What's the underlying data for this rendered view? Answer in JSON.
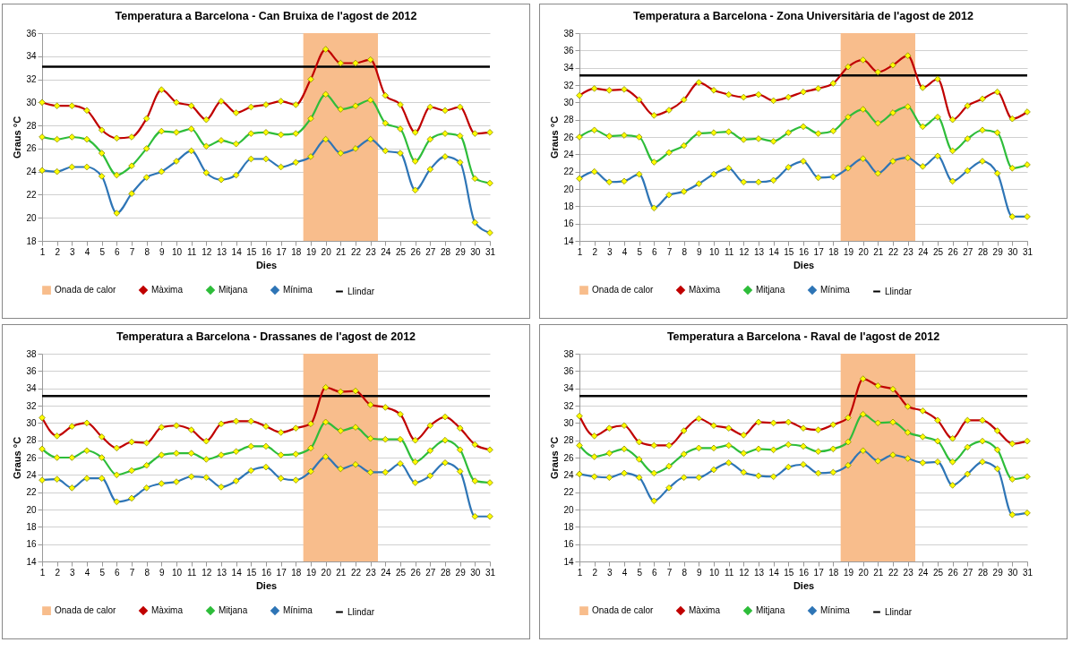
{
  "chart_data": [
    {
      "type": "line",
      "title": "Temperatura a Barcelona - Can Bruixa de l'agost de 2012",
      "xlabel": "Dies",
      "ylabel": "Graus °C",
      "x": [
        1,
        2,
        3,
        4,
        5,
        6,
        7,
        8,
        9,
        10,
        11,
        12,
        13,
        14,
        15,
        16,
        17,
        18,
        19,
        20,
        21,
        22,
        23,
        24,
        25,
        26,
        27,
        28,
        29,
        30,
        31
      ],
      "xlim": [
        1,
        31
      ],
      "xticks": [
        1,
        2,
        3,
        4,
        5,
        6,
        7,
        8,
        9,
        10,
        11,
        12,
        13,
        14,
        15,
        16,
        17,
        18,
        19,
        20,
        21,
        22,
        23,
        24,
        25,
        26,
        27,
        28,
        29,
        30,
        31
      ],
      "ylim": [
        18,
        36
      ],
      "yticks": [
        18,
        20,
        22,
        24,
        26,
        28,
        30,
        32,
        34,
        36
      ],
      "grid": "y",
      "legend": "bottom",
      "marker": "diamond",
      "series": [
        {
          "name": "Màxima",
          "color": "#c00000",
          "values": [
            30.0,
            29.7,
            29.7,
            29.3,
            27.6,
            26.9,
            27.0,
            28.6,
            31.1,
            30.0,
            29.7,
            28.5,
            30.1,
            29.1,
            29.6,
            29.8,
            30.1,
            29.8,
            32.0,
            34.6,
            33.4,
            33.4,
            33.7,
            30.6,
            29.8,
            27.4,
            29.6,
            29.3,
            29.6,
            27.3,
            27.4
          ]
        },
        {
          "name": "Mitjana",
          "color": "#2ebd3a",
          "values": [
            27.0,
            26.8,
            27.0,
            26.8,
            25.6,
            23.7,
            24.5,
            26.0,
            27.5,
            27.4,
            27.7,
            26.2,
            26.7,
            26.4,
            27.3,
            27.4,
            27.2,
            27.3,
            28.6,
            30.7,
            29.4,
            29.7,
            30.2,
            28.2,
            27.7,
            24.9,
            26.8,
            27.3,
            27.1,
            23.4,
            23.0
          ]
        },
        {
          "name": "Mínima",
          "color": "#2e75b6",
          "values": [
            24.1,
            24.0,
            24.4,
            24.4,
            23.6,
            20.4,
            22.1,
            23.5,
            24.0,
            24.9,
            25.8,
            23.9,
            23.3,
            23.7,
            25.1,
            25.1,
            24.4,
            24.8,
            25.3,
            26.8,
            25.6,
            26.0,
            26.8,
            25.8,
            25.6,
            22.4,
            24.2,
            25.3,
            24.8,
            19.6,
            18.7
          ]
        }
      ],
      "ref_lines": [
        {
          "axis": "y",
          "value": 33.1,
          "label": "Llindar",
          "color": "#000000"
        }
      ],
      "bands": [
        {
          "axis": "x",
          "from": 18.5,
          "to": 23.5,
          "label": "Onada de calor",
          "color": "#f8bd8c"
        }
      ]
    },
    {
      "type": "line",
      "title": "Temperatura a Barcelona - Zona Universitària de l'agost de 2012",
      "xlabel": "Dies",
      "ylabel": "Graus °C",
      "x": [
        1,
        2,
        3,
        4,
        5,
        6,
        7,
        8,
        9,
        10,
        11,
        12,
        13,
        14,
        15,
        16,
        17,
        18,
        19,
        20,
        21,
        22,
        23,
        24,
        25,
        26,
        27,
        28,
        29,
        30,
        31
      ],
      "xlim": [
        1,
        31
      ],
      "xticks": [
        1,
        2,
        3,
        4,
        5,
        6,
        7,
        8,
        9,
        10,
        11,
        12,
        13,
        14,
        15,
        16,
        17,
        18,
        19,
        20,
        21,
        22,
        23,
        24,
        25,
        26,
        27,
        28,
        29,
        30,
        31
      ],
      "ylim": [
        14,
        38
      ],
      "yticks": [
        14,
        16,
        18,
        20,
        22,
        24,
        26,
        28,
        30,
        32,
        34,
        36,
        38
      ],
      "grid": "y",
      "legend": "bottom",
      "marker": "diamond",
      "series": [
        {
          "name": "Màxima",
          "color": "#c00000",
          "values": [
            30.8,
            31.6,
            31.4,
            31.5,
            30.3,
            28.5,
            29.1,
            30.3,
            32.3,
            31.4,
            30.9,
            30.6,
            30.9,
            30.2,
            30.6,
            31.2,
            31.6,
            32.2,
            34.1,
            34.9,
            33.5,
            34.3,
            35.4,
            31.7,
            32.7,
            28.0,
            29.6,
            30.4,
            31.2,
            28.1,
            28.9
          ]
        },
        {
          "name": "Mitjana",
          "color": "#2ebd3a",
          "values": [
            26.0,
            26.8,
            26.1,
            26.2,
            26.0,
            23.1,
            24.2,
            25.0,
            26.4,
            26.5,
            26.6,
            25.7,
            25.8,
            25.5,
            26.5,
            27.2,
            26.4,
            26.7,
            28.3,
            29.2,
            27.6,
            28.8,
            29.5,
            27.2,
            28.3,
            24.4,
            25.8,
            26.8,
            26.5,
            22.4,
            22.8
          ]
        },
        {
          "name": "Mínima",
          "color": "#2e75b6",
          "values": [
            21.2,
            22.0,
            20.8,
            20.9,
            21.7,
            17.8,
            19.3,
            19.7,
            20.6,
            21.7,
            22.4,
            20.8,
            20.8,
            21.0,
            22.5,
            23.2,
            21.3,
            21.4,
            22.4,
            23.5,
            21.8,
            23.2,
            23.6,
            22.6,
            23.8,
            20.9,
            22.1,
            23.2,
            21.8,
            16.8,
            16.8
          ]
        }
      ],
      "ref_lines": [
        {
          "axis": "y",
          "value": 33.1,
          "label": "Llindar",
          "color": "#000000"
        }
      ],
      "bands": [
        {
          "axis": "x",
          "from": 18.5,
          "to": 23.5,
          "label": "Onada de calor",
          "color": "#f8bd8c"
        }
      ]
    },
    {
      "type": "line",
      "title": "Temperatura a Barcelona - Drassanes de l'agost de 2012",
      "xlabel": "Dies",
      "ylabel": "Graus °C",
      "x": [
        1,
        2,
        3,
        4,
        5,
        6,
        7,
        8,
        9,
        10,
        11,
        12,
        13,
        14,
        15,
        16,
        17,
        18,
        19,
        20,
        21,
        22,
        23,
        24,
        25,
        26,
        27,
        28,
        29,
        30,
        31
      ],
      "xlim": [
        1,
        31
      ],
      "xticks": [
        1,
        2,
        3,
        4,
        5,
        6,
        7,
        8,
        9,
        10,
        11,
        12,
        13,
        14,
        15,
        16,
        17,
        18,
        19,
        20,
        21,
        22,
        23,
        24,
        25,
        26,
        27,
        28,
        29,
        30,
        31
      ],
      "ylim": [
        14,
        38
      ],
      "yticks": [
        14,
        16,
        18,
        20,
        22,
        24,
        26,
        28,
        30,
        32,
        34,
        36,
        38
      ],
      "grid": "y",
      "legend": "bottom",
      "marker": "diamond",
      "series": [
        {
          "name": "Màxima",
          "color": "#c00000",
          "values": [
            30.6,
            28.5,
            29.6,
            30.0,
            28.4,
            27.1,
            27.8,
            27.7,
            29.5,
            29.7,
            29.2,
            27.9,
            29.9,
            30.2,
            30.2,
            29.6,
            28.9,
            29.4,
            29.9,
            34.1,
            33.6,
            33.7,
            32.1,
            31.8,
            31.0,
            28.0,
            29.7,
            30.7,
            29.4,
            27.5,
            26.9
          ]
        },
        {
          "name": "Mitjana",
          "color": "#2ebd3a",
          "values": [
            27.0,
            26.0,
            26.0,
            26.8,
            26.0,
            24.0,
            24.5,
            25.1,
            26.3,
            26.5,
            26.5,
            25.8,
            26.3,
            26.7,
            27.3,
            27.3,
            26.3,
            26.4,
            27.1,
            30.1,
            29.1,
            29.5,
            28.2,
            28.1,
            28.1,
            25.5,
            26.8,
            28.0,
            26.9,
            23.3,
            23.1
          ]
        },
        {
          "name": "Mínima",
          "color": "#2e75b6",
          "values": [
            23.4,
            23.5,
            22.5,
            23.6,
            23.6,
            20.9,
            21.3,
            22.5,
            23.0,
            23.2,
            23.8,
            23.7,
            22.6,
            23.3,
            24.5,
            24.9,
            23.6,
            23.4,
            24.4,
            26.1,
            24.7,
            25.2,
            24.3,
            24.3,
            25.3,
            23.1,
            23.9,
            25.4,
            24.4,
            19.2,
            19.2
          ]
        }
      ],
      "ref_lines": [
        {
          "axis": "y",
          "value": 33.1,
          "label": "Llindar",
          "color": "#000000"
        }
      ],
      "bands": [
        {
          "axis": "x",
          "from": 18.5,
          "to": 23.5,
          "label": "Onada de calor",
          "color": "#f8bd8c"
        }
      ]
    },
    {
      "type": "line",
      "title": "Temperatura a Barcelona - Raval de l'agost de 2012",
      "xlabel": "Dies",
      "ylabel": "Graus °C",
      "x": [
        1,
        2,
        3,
        4,
        5,
        6,
        7,
        8,
        9,
        10,
        11,
        12,
        13,
        14,
        15,
        16,
        17,
        18,
        19,
        20,
        21,
        22,
        23,
        24,
        25,
        26,
        27,
        28,
        29,
        30,
        31
      ],
      "xlim": [
        1,
        31
      ],
      "xticks": [
        1,
        2,
        3,
        4,
        5,
        6,
        7,
        8,
        9,
        10,
        11,
        12,
        13,
        14,
        15,
        16,
        17,
        18,
        19,
        20,
        21,
        22,
        23,
        24,
        25,
        26,
        27,
        28,
        29,
        30,
        31
      ],
      "ylim": [
        14,
        38
      ],
      "yticks": [
        14,
        16,
        18,
        20,
        22,
        24,
        26,
        28,
        30,
        32,
        34,
        36,
        38
      ],
      "grid": "y",
      "legend": "bottom",
      "marker": "diamond",
      "series": [
        {
          "name": "Màxima",
          "color": "#c00000",
          "values": [
            30.8,
            28.5,
            29.4,
            29.7,
            27.8,
            27.4,
            27.4,
            29.1,
            30.5,
            29.7,
            29.4,
            28.6,
            30.1,
            30.0,
            30.1,
            29.4,
            29.2,
            29.8,
            30.6,
            35.1,
            34.3,
            33.9,
            31.9,
            31.4,
            30.3,
            28.2,
            30.3,
            30.3,
            29.1,
            27.6,
            27.9
          ]
        },
        {
          "name": "Mitjana",
          "color": "#2ebd3a",
          "values": [
            27.4,
            26.1,
            26.5,
            27.0,
            25.8,
            24.2,
            25.0,
            26.4,
            27.1,
            27.1,
            27.4,
            26.5,
            27.0,
            26.9,
            27.5,
            27.3,
            26.7,
            27.0,
            27.8,
            31.0,
            30.0,
            30.1,
            28.9,
            28.4,
            27.9,
            25.5,
            27.2,
            27.9,
            26.9,
            23.5,
            23.8
          ]
        },
        {
          "name": "Mínima",
          "color": "#2e75b6",
          "values": [
            24.1,
            23.8,
            23.7,
            24.2,
            23.7,
            21.0,
            22.5,
            23.7,
            23.7,
            24.6,
            25.4,
            24.3,
            23.9,
            23.8,
            24.9,
            25.2,
            24.2,
            24.3,
            25.1,
            26.8,
            25.6,
            26.3,
            25.9,
            25.4,
            25.5,
            22.8,
            24.1,
            25.5,
            24.7,
            19.4,
            19.6
          ]
        }
      ],
      "ref_lines": [
        {
          "axis": "y",
          "value": 33.1,
          "label": "Llindar",
          "color": "#000000"
        }
      ],
      "bands": [
        {
          "axis": "x",
          "from": 18.5,
          "to": 23.5,
          "label": "Onada de calor",
          "color": "#f8bd8c"
        }
      ]
    }
  ]
}
